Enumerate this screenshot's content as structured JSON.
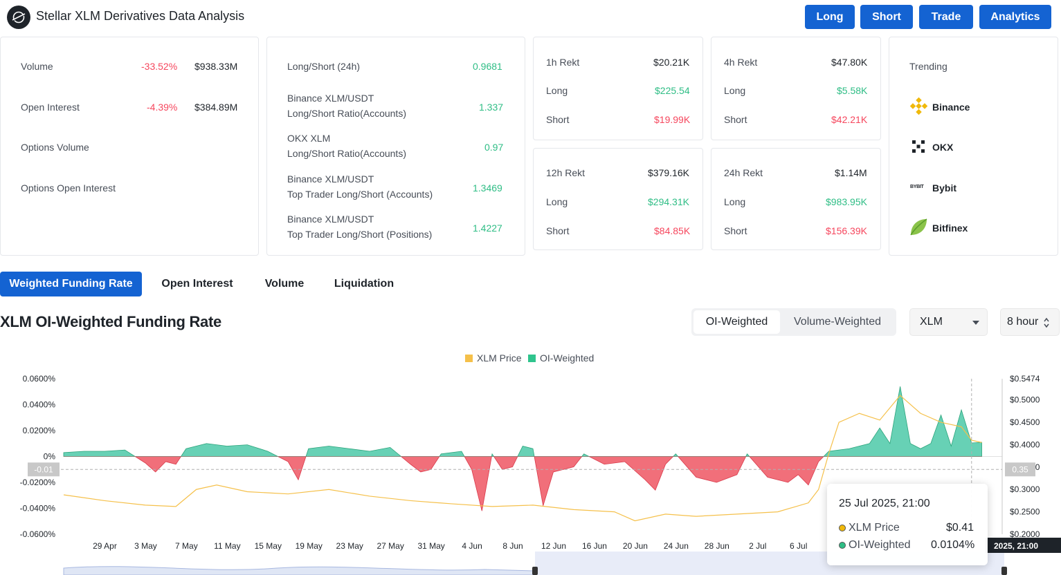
{
  "header": {
    "title": "Stellar XLM Derivatives Data Analysis",
    "logo_icon": "stellar-logo-icon",
    "buttons": [
      "Long",
      "Short",
      "Trade",
      "Analytics"
    ]
  },
  "overview": {
    "volume": {
      "label": "Volume",
      "change": "-33.52%",
      "value": "$938.33M"
    },
    "open_interest": {
      "label": "Open Interest",
      "change": "-4.39%",
      "value": "$384.89M"
    },
    "options_volume": {
      "label": "Options Volume"
    },
    "options_oi": {
      "label": "Options Open Interest"
    }
  },
  "ratios": {
    "ls24": {
      "label": "Long/Short (24h)",
      "value": "0.9681"
    },
    "binance_acc": {
      "line1": "Binance XLM/USDT",
      "line2": "Long/Short Ratio(Accounts)",
      "value": "1.337"
    },
    "okx_acc": {
      "line1": "OKX XLM",
      "line2": "Long/Short Ratio(Accounts)",
      "value": "0.97"
    },
    "binance_top_acc": {
      "line1": "Binance XLM/USDT",
      "line2": "Top Trader Long/Short (Accounts)",
      "value": "1.3469"
    },
    "binance_top_pos": {
      "line1": "Binance XLM/USDT",
      "line2": "Top Trader Long/Short (Positions)",
      "value": "1.4227"
    }
  },
  "rekt": {
    "h1": {
      "label": "1h Rekt",
      "total": "$20.21K",
      "long": "$225.54",
      "short": "$19.99K"
    },
    "h4": {
      "label": "4h Rekt",
      "total": "$47.80K",
      "long": "$5.58K",
      "short": "$42.21K"
    },
    "h12": {
      "label": "12h Rekt",
      "total": "$379.16K",
      "long": "$294.31K",
      "short": "$84.85K"
    },
    "h24": {
      "label": "24h Rekt",
      "total": "$1.14M",
      "long": "$983.95K",
      "short": "$156.39K"
    },
    "long_label": "Long",
    "short_label": "Short"
  },
  "trending": {
    "label": "Trending",
    "items": [
      {
        "name": "Binance",
        "icon": "binance-icon"
      },
      {
        "name": "OKX",
        "icon": "okx-icon"
      },
      {
        "name": "Bybit",
        "icon": "bybit-icon"
      },
      {
        "name": "Bitfinex",
        "icon": "bitfinex-icon"
      }
    ]
  },
  "tabs": [
    "Weighted Funding Rate",
    "Open Interest",
    "Volume",
    "Liquidation"
  ],
  "chart_section": {
    "title": "XLM OI-Weighted Funding Rate",
    "segments": [
      "OI-Weighted",
      "Volume-Weighted"
    ],
    "coin_select": "XLM",
    "interval_select": "8 hour"
  },
  "colors": {
    "accent": "#1463d2",
    "positive": "#2ebd85",
    "negative": "#f6465d",
    "price_line": "#f0b90b",
    "area_pos": "#4cc9a8",
    "area_neg": "#ef5f6c"
  },
  "chart_data": {
    "type": "area",
    "legend": [
      "XLM Price",
      "OI-Weighted"
    ],
    "legend_position": "top-center",
    "x_ticks": [
      "29 Apr",
      "3 May",
      "7 May",
      "11 May",
      "15 May",
      "19 May",
      "23 May",
      "27 May",
      "31 May",
      "4 Jun",
      "8 Jun",
      "12 Jun",
      "16 Jun",
      "20 Jun",
      "24 Jun",
      "28 Jun",
      "2 Jul",
      "6 Jul"
    ],
    "y_left_ticks": [
      "0.0600%",
      "0.0400%",
      "0.0200%",
      "0%",
      "-0.0200%",
      "-0.0400%",
      "-0.0600%"
    ],
    "y_right_ticks": [
      "$0.5474",
      "$0.5000",
      "$0.4500",
      "$0.4000",
      "$0.3500",
      "$0.3000",
      "$0.2500",
      "$0.2000"
    ],
    "y_left_range": [
      -0.06,
      0.06
    ],
    "y_right_range": [
      0.2,
      0.5474
    ],
    "crosshair_left_label": "-0.01",
    "crosshair_right_label": "0.35",
    "x_range": [
      "2025-04-27",
      "2025-07-28"
    ],
    "series": [
      {
        "name": "OI-Weighted",
        "unit": "%",
        "points": [
          [
            "2025-04-27",
            0.003
          ],
          [
            "2025-04-29",
            0.004
          ],
          [
            "2025-05-01",
            0.004
          ],
          [
            "2025-05-03",
            0.005
          ],
          [
            "2025-05-05",
            -0.005
          ],
          [
            "2025-05-06",
            -0.012
          ],
          [
            "2025-05-07",
            -0.004
          ],
          [
            "2025-05-08",
            -0.006
          ],
          [
            "2025-05-09",
            0.006
          ],
          [
            "2025-05-11",
            0.01
          ],
          [
            "2025-05-13",
            0.008
          ],
          [
            "2025-05-15",
            0.009
          ],
          [
            "2025-05-17",
            0.004
          ],
          [
            "2025-05-19",
            -0.004
          ],
          [
            "2025-05-20",
            -0.018
          ],
          [
            "2025-05-21",
            0.006
          ],
          [
            "2025-05-23",
            0.008
          ],
          [
            "2025-05-25",
            0.006
          ],
          [
            "2025-05-27",
            0.004
          ],
          [
            "2025-05-29",
            0.007
          ],
          [
            "2025-05-31",
            -0.006
          ],
          [
            "2025-06-01",
            -0.012
          ],
          [
            "2025-06-02",
            -0.01
          ],
          [
            "2025-06-03",
            0.002
          ],
          [
            "2025-06-05",
            0.004
          ],
          [
            "2025-06-06",
            -0.01
          ],
          [
            "2025-06-07",
            -0.042
          ],
          [
            "2025-06-08",
            0.002
          ],
          [
            "2025-06-09",
            -0.01
          ],
          [
            "2025-06-10",
            -0.008
          ],
          [
            "2025-06-11",
            0.008
          ],
          [
            "2025-06-12",
            0.006
          ],
          [
            "2025-06-13",
            -0.038
          ],
          [
            "2025-06-14",
            -0.012
          ],
          [
            "2025-06-16",
            -0.008
          ],
          [
            "2025-06-17",
            0.002
          ],
          [
            "2025-06-19",
            -0.006
          ],
          [
            "2025-06-21",
            -0.004
          ],
          [
            "2025-06-23",
            -0.018
          ],
          [
            "2025-06-24",
            -0.026
          ],
          [
            "2025-06-25",
            -0.006
          ],
          [
            "2025-06-26",
            0.002
          ],
          [
            "2025-06-28",
            -0.016
          ],
          [
            "2025-06-30",
            -0.02
          ],
          [
            "2025-07-02",
            -0.014
          ],
          [
            "2025-07-03",
            0.002
          ],
          [
            "2025-07-05",
            -0.016
          ],
          [
            "2025-07-07",
            -0.02
          ],
          [
            "2025-07-08",
            -0.014
          ],
          [
            "2025-07-09",
            -0.022
          ],
          [
            "2025-07-10",
            -0.004
          ],
          [
            "2025-07-11",
            0.004
          ],
          [
            "2025-07-13",
            0.006
          ],
          [
            "2025-07-15",
            0.01
          ],
          [
            "2025-07-16",
            0.022
          ],
          [
            "2025-07-17",
            0.01
          ],
          [
            "2025-07-18",
            0.054
          ],
          [
            "2025-07-19",
            0.01
          ],
          [
            "2025-07-20",
            0.006
          ],
          [
            "2025-07-21",
            0.01
          ],
          [
            "2025-07-22",
            0.032
          ],
          [
            "2025-07-23",
            0.008
          ],
          [
            "2025-07-24",
            0.036
          ],
          [
            "2025-07-25",
            0.0104
          ],
          [
            "2025-07-26",
            0.011
          ]
        ]
      },
      {
        "name": "XLM Price",
        "unit": "$",
        "points": [
          [
            "2025-04-27",
            0.288
          ],
          [
            "2025-05-01",
            0.275
          ],
          [
            "2025-05-05",
            0.265
          ],
          [
            "2025-05-08",
            0.262
          ],
          [
            "2025-05-10",
            0.3
          ],
          [
            "2025-05-12",
            0.31
          ],
          [
            "2025-05-15",
            0.295
          ],
          [
            "2025-05-19",
            0.29
          ],
          [
            "2025-05-23",
            0.3
          ],
          [
            "2025-05-27",
            0.285
          ],
          [
            "2025-05-31",
            0.275
          ],
          [
            "2025-06-04",
            0.268
          ],
          [
            "2025-06-08",
            0.262
          ],
          [
            "2025-06-12",
            0.265
          ],
          [
            "2025-06-16",
            0.255
          ],
          [
            "2025-06-20",
            0.25
          ],
          [
            "2025-06-22",
            0.23
          ],
          [
            "2025-06-25",
            0.245
          ],
          [
            "2025-06-28",
            0.24
          ],
          [
            "2025-07-02",
            0.245
          ],
          [
            "2025-07-06",
            0.25
          ],
          [
            "2025-07-09",
            0.27
          ],
          [
            "2025-07-10",
            0.3
          ],
          [
            "2025-07-11",
            0.38
          ],
          [
            "2025-07-12",
            0.45
          ],
          [
            "2025-07-14",
            0.47
          ],
          [
            "2025-07-16",
            0.455
          ],
          [
            "2025-07-18",
            0.51
          ],
          [
            "2025-07-20",
            0.47
          ],
          [
            "2025-07-22",
            0.45
          ],
          [
            "2025-07-24",
            0.44
          ],
          [
            "2025-07-25",
            0.41
          ],
          [
            "2025-07-26",
            0.405
          ]
        ]
      }
    ],
    "tooltip": {
      "date": "25 Jul 2025, 21:00",
      "price_label": "XLM Price",
      "price_value": "$0.41",
      "oi_label": "OI-Weighted",
      "oi_value": "0.0104%"
    },
    "crosshair_date_label": "2025, 21:00"
  }
}
